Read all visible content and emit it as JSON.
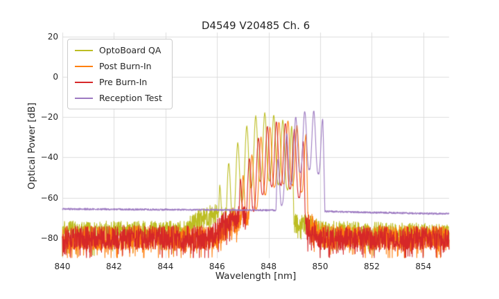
{
  "chart_data": {
    "type": "line",
    "title": "D4549 V20485 Ch. 6",
    "xlabel": "Wavelength [nm]",
    "ylabel": "Optical Power [dB]",
    "xlim": [
      840,
      855
    ],
    "ylim": [
      -90,
      22
    ],
    "xticks": [
      840,
      842,
      844,
      846,
      848,
      850,
      852,
      854
    ],
    "xtick_labels": [
      "840",
      "842",
      "844",
      "846",
      "848",
      "850",
      "852",
      "854"
    ],
    "yticks": [
      20,
      0,
      -20,
      -40,
      -60,
      -80
    ],
    "ytick_labels": [
      "20",
      "0",
      "−20",
      "−40",
      "−60",
      "−80"
    ],
    "grid": true,
    "grid_color": "#dcdcdc",
    "text_color": "#262626",
    "background": "#ffffff",
    "legend": {
      "position": "upper left",
      "entries": [
        "OptoBoard QA",
        "Post Burn-In",
        "Pre Burn-In",
        "Reception Test"
      ]
    },
    "series": [
      {
        "name": "OptoBoard QA",
        "color": "#bcbd22",
        "seed": 7,
        "noise_floor": {
          "points": [
            [
              840,
              -76.5
            ],
            [
              844.6,
              -76.5
            ],
            [
              845.3,
              -70.5
            ],
            [
              845.8,
              -67.5
            ],
            [
              846.2,
              -69.5
            ],
            [
              846.8,
              -71
            ],
            [
              849.5,
              -73
            ],
            [
              850.1,
              -76.5
            ],
            [
              855,
              -77.5
            ]
          ],
          "noise_amp": 5,
          "spike_prob": 0.15,
          "spike_amp": 8
        },
        "modes": {
          "spacing": 0.35,
          "phase": 847.85,
          "depth": 33,
          "sharpness": 1.4,
          "peaks": [
            [
              846.1,
              -54
            ],
            [
              846.45,
              -43
            ],
            [
              846.8,
              -33
            ],
            [
              847.15,
              -24.5
            ],
            [
              847.5,
              -19.5
            ],
            [
              847.85,
              -18
            ],
            [
              848.2,
              -19
            ],
            [
              848.55,
              -21.5
            ],
            [
              848.9,
              -24.5
            ]
          ]
        }
      },
      {
        "name": "Post Burn-In",
        "color": "#ff7f0e",
        "seed": 11,
        "noise_floor": {
          "points": [
            [
              840,
              -80
            ],
            [
              845.9,
              -80
            ],
            [
              846.6,
              -72.5
            ],
            [
              847.2,
              -69.5
            ],
            [
              849.6,
              -73
            ],
            [
              850.2,
              -79.5
            ],
            [
              855,
              -80
            ]
          ],
          "noise_amp": 6,
          "spike_prob": 0.2,
          "spike_amp": 8
        },
        "modes": {
          "spacing": 0.35,
          "phase": 848.4,
          "depth": 31,
          "sharpness": 1.4,
          "peaks": [
            [
              847,
              -49
            ],
            [
              847.35,
              -39
            ],
            [
              847.7,
              -30
            ],
            [
              848.05,
              -25
            ],
            [
              848.4,
              -22.5
            ],
            [
              848.75,
              -22
            ],
            [
              849.1,
              -24
            ],
            [
              849.45,
              -28.5
            ]
          ]
        }
      },
      {
        "name": "Pre Burn-In",
        "color": "#d62728",
        "seed": 13,
        "noise_floor": {
          "points": [
            [
              840,
              -80
            ],
            [
              845.8,
              -79.5
            ],
            [
              846.4,
              -71
            ],
            [
              846.9,
              -68.5
            ],
            [
              849.5,
              -73.5
            ],
            [
              850,
              -80
            ],
            [
              855,
              -80
            ]
          ],
          "noise_amp": 6,
          "spike_prob": 0.2,
          "spike_amp": 8
        },
        "modes": {
          "spacing": 0.35,
          "phase": 848.3,
          "depth": 31,
          "sharpness": 1.4,
          "peaks": [
            [
              846.9,
              -51
            ],
            [
              847.25,
              -40.5
            ],
            [
              847.6,
              -30.5
            ],
            [
              847.95,
              -24.5
            ],
            [
              848.3,
              -22.5
            ],
            [
              848.65,
              -23
            ],
            [
              849,
              -26
            ],
            [
              849.35,
              -32
            ]
          ]
        }
      },
      {
        "name": "Reception Test",
        "color": "#9c79c1",
        "seed": 5,
        "noise_floor": {
          "points": [
            [
              840,
              -65.6
            ],
            [
              848.3,
              -66.2
            ],
            [
              850.3,
              -66.8
            ],
            [
              851.5,
              -67.2
            ],
            [
              855,
              -68
            ]
          ],
          "noise_amp": 0.45,
          "spike_prob": 0,
          "spike_amp": 0
        },
        "modes": {
          "spacing": 0.35,
          "phase": 849.4,
          "depth": 29,
          "sharpness": 1.4,
          "peaks": [
            [
              848.35,
              -41
            ],
            [
              848.7,
              -28.5
            ],
            [
              849.05,
              -20
            ],
            [
              849.4,
              -17
            ],
            [
              849.75,
              -17
            ],
            [
              850.1,
              -21
            ]
          ]
        }
      }
    ]
  }
}
